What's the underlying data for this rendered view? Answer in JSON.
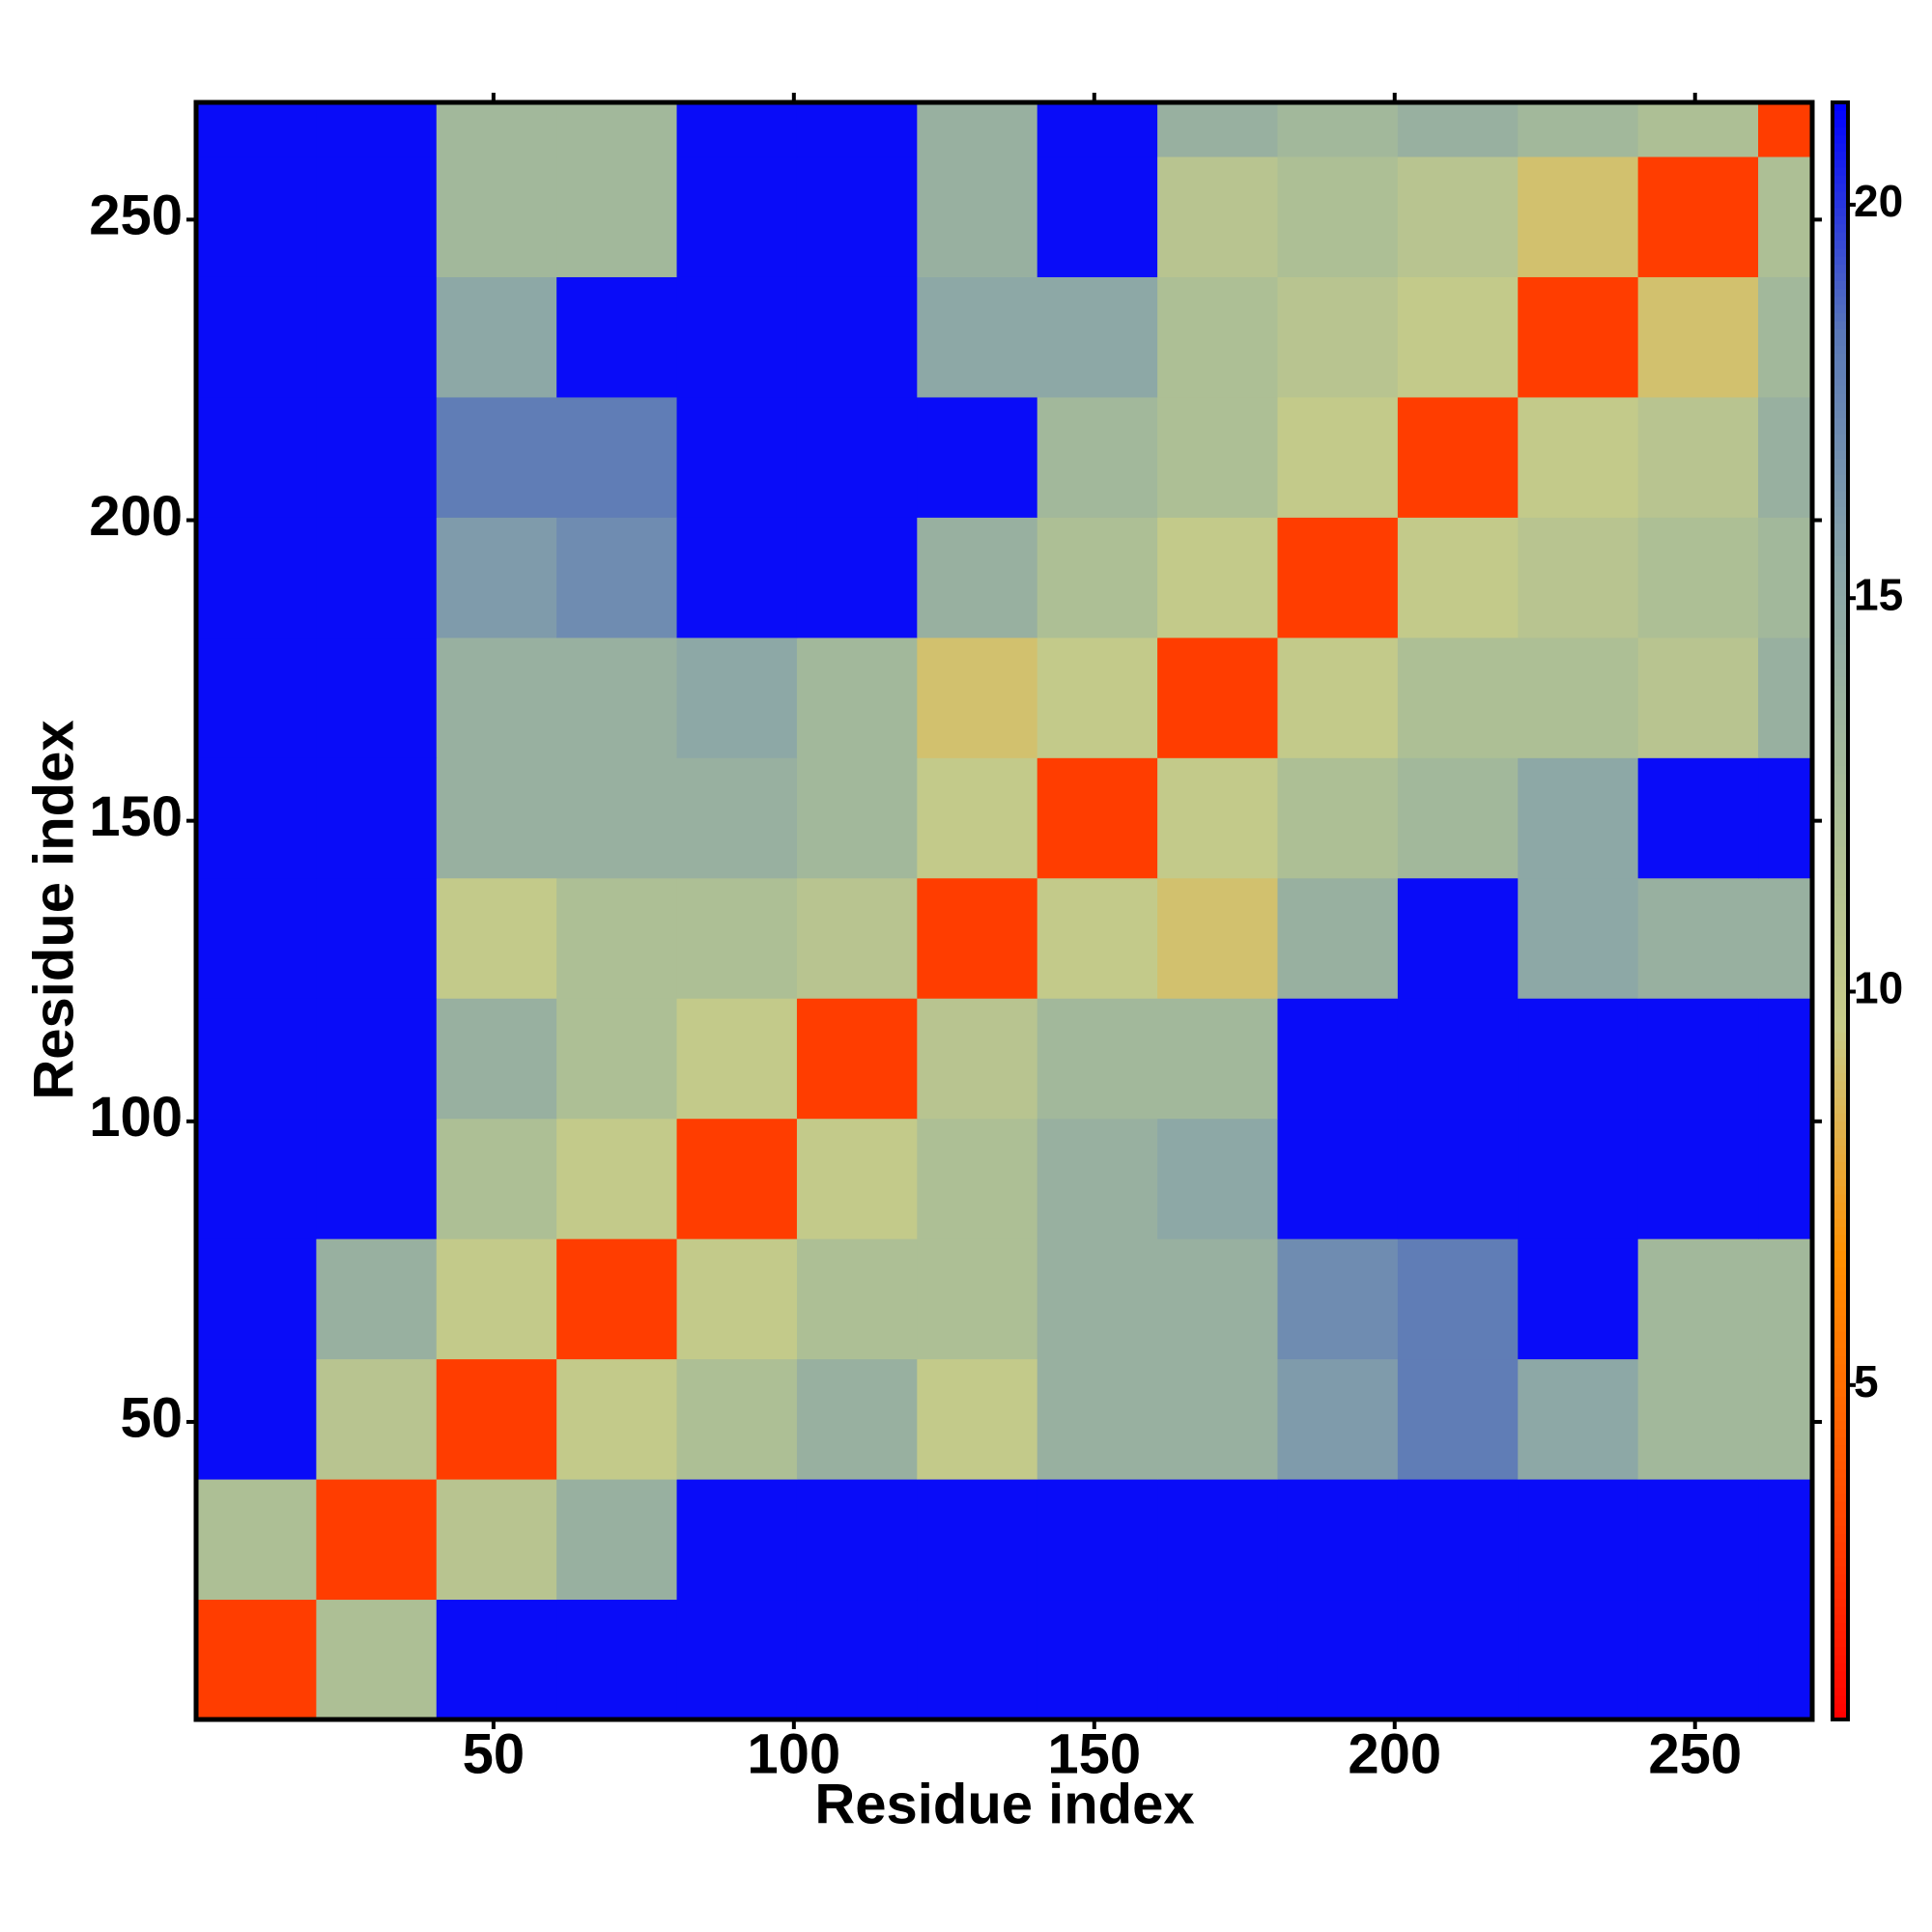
{
  "chart_data": {
    "type": "heatmap",
    "xlabel": "Residue index",
    "ylabel": "Residue index",
    "x_bins": [
      0.5,
      20.5,
      40.5,
      60.5,
      80.5,
      100.5,
      120.5,
      140.5,
      160.5,
      180.5,
      200.5,
      220.5,
      240.5,
      260.5,
      269.5
    ],
    "y_bins": [
      0.5,
      20.5,
      40.5,
      60.5,
      80.5,
      100.5,
      120.5,
      140.5,
      160.5,
      180.5,
      200.5,
      220.5,
      240.5,
      260.5,
      269.5
    ],
    "xlim": [
      0.5,
      269.5
    ],
    "ylim": [
      0.5,
      269.5
    ],
    "xticks": [
      50,
      100,
      150,
      200,
      250
    ],
    "yticks": [
      50,
      100,
      150,
      200,
      250
    ],
    "zlim": [
      0.75,
      21.3
    ],
    "zticks": [
      5,
      10,
      15,
      20
    ],
    "colormap": [
      "#ff0000",
      "#ff5000",
      "#ff9000",
      "#c8cc88",
      "#a8bc98",
      "#88a4a8",
      "#5a78b8",
      "#0000ff"
    ],
    "values": [
      [
        3,
        12,
        21,
        21,
        21,
        21,
        21,
        21,
        21,
        21,
        21,
        21,
        21,
        21
      ],
      [
        12,
        3,
        11,
        14,
        21,
        21,
        21,
        21,
        21,
        21,
        21,
        21,
        21,
        21
      ],
      [
        21,
        11,
        3,
        10,
        12,
        14,
        10,
        14,
        14,
        16,
        18,
        15,
        13,
        13
      ],
      [
        21,
        14,
        10,
        3,
        10,
        12,
        12,
        14,
        14,
        17,
        18,
        21,
        13,
        13
      ],
      [
        21,
        21,
        12,
        10,
        3,
        10,
        12,
        14,
        15,
        21,
        21,
        21,
        21,
        21
      ],
      [
        21,
        21,
        14,
        12,
        10,
        3,
        11,
        13,
        13,
        21,
        21,
        21,
        21,
        21
      ],
      [
        21,
        21,
        10,
        12,
        12,
        11,
        3,
        10,
        9,
        14,
        21,
        15,
        14,
        14
      ],
      [
        21,
        21,
        14,
        14,
        14,
        13,
        10,
        3,
        10,
        12,
        13,
        15,
        21,
        21
      ],
      [
        21,
        21,
        14,
        14,
        15,
        13,
        9,
        10,
        3,
        10,
        12,
        12,
        11,
        14
      ],
      [
        21,
        21,
        16,
        17,
        21,
        21,
        14,
        12,
        10,
        3,
        10,
        11,
        12,
        13
      ],
      [
        21,
        21,
        18,
        18,
        21,
        21,
        21,
        13,
        12,
        10,
        3,
        10,
        11,
        14
      ],
      [
        21,
        21,
        15,
        21,
        21,
        21,
        15,
        15,
        12,
        11,
        10,
        3,
        9,
        13
      ],
      [
        21,
        21,
        13,
        13,
        21,
        21,
        14,
        21,
        11,
        12,
        11,
        9,
        3,
        12
      ],
      [
        21,
        21,
        13,
        13,
        21,
        21,
        14,
        21,
        14,
        13,
        14,
        13,
        12,
        3
      ]
    ]
  }
}
